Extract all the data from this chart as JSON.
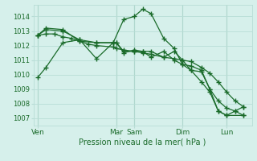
{
  "background_color": "#d6f0eb",
  "grid_color": "#b8ddd6",
  "line_color": "#1a6b2a",
  "title": "Pression niveau de la mer( hPa )",
  "ylim": [
    1006.5,
    1014.8
  ],
  "yticks": [
    1007,
    1008,
    1009,
    1010,
    1011,
    1012,
    1013,
    1014
  ],
  "day_labels": [
    "Ven",
    "Mar",
    "Sam",
    "Dim",
    "Lun"
  ],
  "day_positions": [
    0.0,
    0.375,
    0.46,
    0.69,
    0.9
  ],
  "vline_positions": [
    0.0,
    0.375,
    0.46,
    0.69,
    0.9
  ],
  "series": [
    {
      "x": [
        0.0,
        0.04,
        0.12,
        0.2,
        0.28,
        0.36,
        0.41,
        0.46,
        0.5,
        0.54,
        0.6,
        0.65,
        0.69,
        0.73,
        0.78,
        0.82,
        0.86,
        0.9,
        0.94,
        0.98
      ],
      "y": [
        1009.8,
        1010.5,
        1012.2,
        1012.4,
        1012.2,
        1012.2,
        1013.8,
        1014.0,
        1014.5,
        1014.2,
        1012.5,
        1011.8,
        1010.7,
        1010.6,
        1010.3,
        1009.0,
        1008.2,
        1007.7,
        1007.5,
        1007.8
      ]
    },
    {
      "x": [
        0.0,
        0.04,
        0.12,
        0.2,
        0.28,
        0.36,
        0.375,
        0.41,
        0.46,
        0.5,
        0.54,
        0.6,
        0.65,
        0.69,
        0.73,
        0.78,
        0.82,
        0.86,
        0.9,
        0.98
      ],
      "y": [
        1012.7,
        1013.2,
        1013.1,
        1012.3,
        1012.2,
        1012.2,
        1012.2,
        1011.6,
        1011.6,
        1011.6,
        1011.2,
        1011.6,
        1011.0,
        1010.7,
        1010.3,
        1010.2,
        1009.0,
        1007.5,
        1007.2,
        1007.2
      ]
    },
    {
      "x": [
        0.0,
        0.04,
        0.08,
        0.12,
        0.16,
        0.2,
        0.24,
        0.28,
        0.36,
        0.375,
        0.41,
        0.46,
        0.5,
        0.54,
        0.6,
        0.65,
        0.69,
        0.73,
        0.78,
        0.82,
        0.86,
        0.9,
        0.94,
        0.98
      ],
      "y": [
        1012.7,
        1012.8,
        1012.8,
        1012.6,
        1012.5,
        1012.3,
        1012.1,
        1012.0,
        1011.9,
        1011.8,
        1011.7,
        1011.6,
        1011.5,
        1011.4,
        1011.2,
        1011.1,
        1011.0,
        1010.9,
        1010.5,
        1010.1,
        1009.5,
        1008.8,
        1008.2,
        1007.8
      ]
    },
    {
      "x": [
        0.0,
        0.04,
        0.12,
        0.2,
        0.28,
        0.36,
        0.375,
        0.41,
        0.46,
        0.5,
        0.54,
        0.6,
        0.65,
        0.69,
        0.73,
        0.78,
        0.82,
        0.86,
        0.9,
        0.94,
        0.98
      ],
      "y": [
        1012.7,
        1013.1,
        1013.0,
        1012.4,
        1011.1,
        1012.2,
        1012.2,
        1011.5,
        1011.7,
        1011.6,
        1011.6,
        1011.2,
        1011.6,
        1011.0,
        1010.3,
        1009.5,
        1008.8,
        1007.5,
        1007.2,
        1007.5,
        1007.2
      ]
    }
  ],
  "figsize": [
    3.2,
    2.0
  ],
  "dpi": 100
}
